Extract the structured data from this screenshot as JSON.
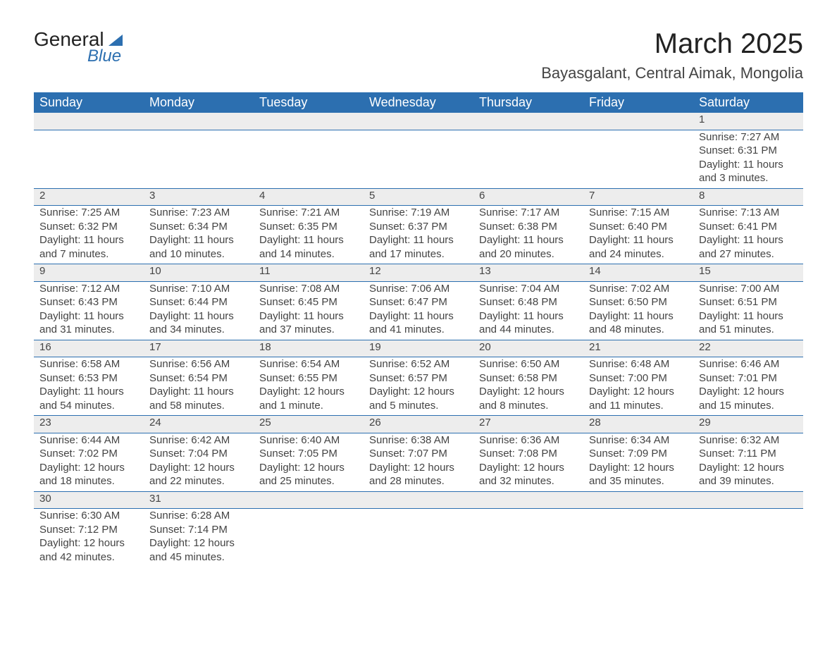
{
  "logo": {
    "text1": "General",
    "text2": "Blue"
  },
  "title": {
    "month": "March 2025",
    "location": "Bayasgalant, Central Aimak, Mongolia"
  },
  "colors": {
    "header_bg": "#2c6fb0",
    "header_fg": "#ffffff",
    "strip_bg": "#ededed",
    "rule": "#2c6fb0",
    "text": "#444444",
    "title": "#222222"
  },
  "typography": {
    "title_fontsize_pt": 30,
    "location_fontsize_pt": 16,
    "header_fontsize_pt": 14,
    "body_fontsize_pt": 11,
    "daynum_fontsize_pt": 14,
    "font_family": "Arial"
  },
  "weekday_headers": [
    "Sunday",
    "Monday",
    "Tuesday",
    "Wednesday",
    "Thursday",
    "Friday",
    "Saturday"
  ],
  "weeks": [
    {
      "nums": [
        "",
        "",
        "",
        "",
        "",
        "",
        "1"
      ],
      "cells": [
        null,
        null,
        null,
        null,
        null,
        null,
        {
          "sunrise": "7:27 AM",
          "sunset": "6:31 PM",
          "daylight": "11 hours and 3 minutes."
        }
      ]
    },
    {
      "nums": [
        "2",
        "3",
        "4",
        "5",
        "6",
        "7",
        "8"
      ],
      "cells": [
        {
          "sunrise": "7:25 AM",
          "sunset": "6:32 PM",
          "daylight": "11 hours and 7 minutes."
        },
        {
          "sunrise": "7:23 AM",
          "sunset": "6:34 PM",
          "daylight": "11 hours and 10 minutes."
        },
        {
          "sunrise": "7:21 AM",
          "sunset": "6:35 PM",
          "daylight": "11 hours and 14 minutes."
        },
        {
          "sunrise": "7:19 AM",
          "sunset": "6:37 PM",
          "daylight": "11 hours and 17 minutes."
        },
        {
          "sunrise": "7:17 AM",
          "sunset": "6:38 PM",
          "daylight": "11 hours and 20 minutes."
        },
        {
          "sunrise": "7:15 AM",
          "sunset": "6:40 PM",
          "daylight": "11 hours and 24 minutes."
        },
        {
          "sunrise": "7:13 AM",
          "sunset": "6:41 PM",
          "daylight": "11 hours and 27 minutes."
        }
      ]
    },
    {
      "nums": [
        "9",
        "10",
        "11",
        "12",
        "13",
        "14",
        "15"
      ],
      "cells": [
        {
          "sunrise": "7:12 AM",
          "sunset": "6:43 PM",
          "daylight": "11 hours and 31 minutes."
        },
        {
          "sunrise": "7:10 AM",
          "sunset": "6:44 PM",
          "daylight": "11 hours and 34 minutes."
        },
        {
          "sunrise": "7:08 AM",
          "sunset": "6:45 PM",
          "daylight": "11 hours and 37 minutes."
        },
        {
          "sunrise": "7:06 AM",
          "sunset": "6:47 PM",
          "daylight": "11 hours and 41 minutes."
        },
        {
          "sunrise": "7:04 AM",
          "sunset": "6:48 PM",
          "daylight": "11 hours and 44 minutes."
        },
        {
          "sunrise": "7:02 AM",
          "sunset": "6:50 PM",
          "daylight": "11 hours and 48 minutes."
        },
        {
          "sunrise": "7:00 AM",
          "sunset": "6:51 PM",
          "daylight": "11 hours and 51 minutes."
        }
      ]
    },
    {
      "nums": [
        "16",
        "17",
        "18",
        "19",
        "20",
        "21",
        "22"
      ],
      "cells": [
        {
          "sunrise": "6:58 AM",
          "sunset": "6:53 PM",
          "daylight": "11 hours and 54 minutes."
        },
        {
          "sunrise": "6:56 AM",
          "sunset": "6:54 PM",
          "daylight": "11 hours and 58 minutes."
        },
        {
          "sunrise": "6:54 AM",
          "sunset": "6:55 PM",
          "daylight": "12 hours and 1 minute."
        },
        {
          "sunrise": "6:52 AM",
          "sunset": "6:57 PM",
          "daylight": "12 hours and 5 minutes."
        },
        {
          "sunrise": "6:50 AM",
          "sunset": "6:58 PM",
          "daylight": "12 hours and 8 minutes."
        },
        {
          "sunrise": "6:48 AM",
          "sunset": "7:00 PM",
          "daylight": "12 hours and 11 minutes."
        },
        {
          "sunrise": "6:46 AM",
          "sunset": "7:01 PM",
          "daylight": "12 hours and 15 minutes."
        }
      ]
    },
    {
      "nums": [
        "23",
        "24",
        "25",
        "26",
        "27",
        "28",
        "29"
      ],
      "cells": [
        {
          "sunrise": "6:44 AM",
          "sunset": "7:02 PM",
          "daylight": "12 hours and 18 minutes."
        },
        {
          "sunrise": "6:42 AM",
          "sunset": "7:04 PM",
          "daylight": "12 hours and 22 minutes."
        },
        {
          "sunrise": "6:40 AM",
          "sunset": "7:05 PM",
          "daylight": "12 hours and 25 minutes."
        },
        {
          "sunrise": "6:38 AM",
          "sunset": "7:07 PM",
          "daylight": "12 hours and 28 minutes."
        },
        {
          "sunrise": "6:36 AM",
          "sunset": "7:08 PM",
          "daylight": "12 hours and 32 minutes."
        },
        {
          "sunrise": "6:34 AM",
          "sunset": "7:09 PM",
          "daylight": "12 hours and 35 minutes."
        },
        {
          "sunrise": "6:32 AM",
          "sunset": "7:11 PM",
          "daylight": "12 hours and 39 minutes."
        }
      ]
    },
    {
      "nums": [
        "30",
        "31",
        "",
        "",
        "",
        "",
        ""
      ],
      "cells": [
        {
          "sunrise": "6:30 AM",
          "sunset": "7:12 PM",
          "daylight": "12 hours and 42 minutes."
        },
        {
          "sunrise": "6:28 AM",
          "sunset": "7:14 PM",
          "daylight": "12 hours and 45 minutes."
        },
        null,
        null,
        null,
        null,
        null
      ]
    }
  ],
  "labels": {
    "sunrise": "Sunrise: ",
    "sunset": "Sunset: ",
    "daylight": "Daylight: "
  }
}
